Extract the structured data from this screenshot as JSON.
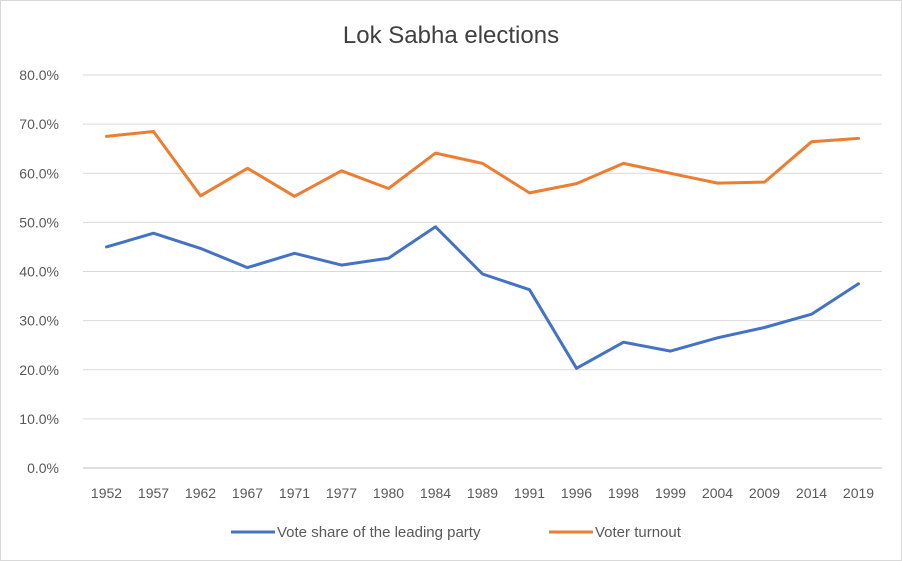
{
  "chart_data": {
    "type": "line",
    "title": "Lok Sabha elections",
    "xlabel": "",
    "ylabel": "",
    "ylim": [
      0,
      80
    ],
    "y_ticks": [
      "0.0%",
      "10.0%",
      "20.0%",
      "30.0%",
      "40.0%",
      "50.0%",
      "60.0%",
      "70.0%",
      "80.0%"
    ],
    "grid": true,
    "legend_position": "bottom",
    "categories": [
      "1952",
      "1957",
      "1962",
      "1967",
      "1971",
      "1977",
      "1980",
      "1984",
      "1989",
      "1991",
      "1996",
      "1998",
      "1999",
      "2004",
      "2009",
      "2014",
      "2019"
    ],
    "series": [
      {
        "name": "Vote share of the leading party",
        "color": "#4472c4",
        "values": [
          45.0,
          47.8,
          44.7,
          40.8,
          43.7,
          41.3,
          42.7,
          49.1,
          39.5,
          36.3,
          20.3,
          25.6,
          23.8,
          26.5,
          28.6,
          31.3,
          37.5
        ]
      },
      {
        "name": "Voter turnout",
        "color": "#ed7d31",
        "values": [
          67.5,
          68.5,
          55.4,
          61.0,
          55.3,
          60.5,
          56.9,
          64.1,
          62.0,
          56.0,
          57.9,
          62.0,
          60.0,
          58.0,
          58.2,
          66.4,
          67.1
        ]
      }
    ]
  }
}
